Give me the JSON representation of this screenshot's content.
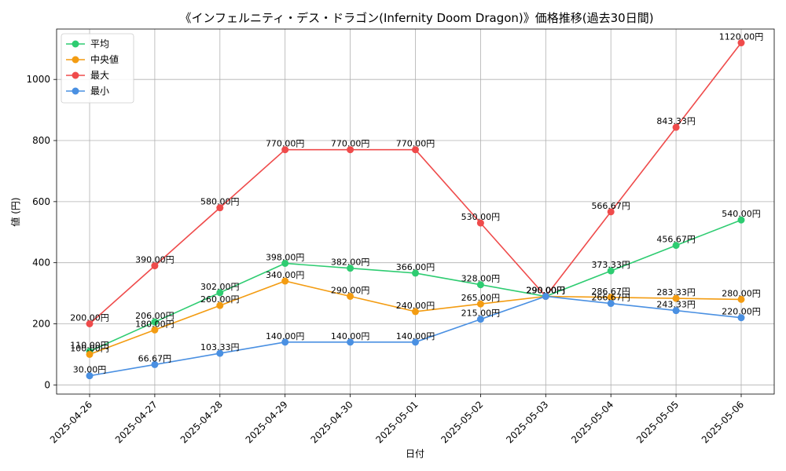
{
  "chart_data": {
    "type": "line",
    "title": "《インフェルニティ・デス・ドラゴン(Infernity Doom Dragon)》価格推移(過去30日間)",
    "xlabel": "日付",
    "ylabel": "値 (円)",
    "ylim": [
      -30,
      1165
    ],
    "yticks": [
      0,
      200,
      400,
      600,
      800,
      1000
    ],
    "grid": true,
    "legend": "top-left",
    "label_suffix": "円",
    "categories": [
      "2025-04-26",
      "2025-04-27",
      "2025-04-28",
      "2025-04-29",
      "2025-04-30",
      "2025-05-01",
      "2025-05-02",
      "2025-05-03",
      "2025-05-04",
      "2025-05-05",
      "2025-05-06"
    ],
    "series": [
      {
        "name": "平均",
        "color": "#2ecc71",
        "values": [
          110.0,
          206.0,
          302.0,
          398.0,
          382.0,
          366.0,
          328.0,
          290.0,
          373.33,
          456.67,
          540.0
        ]
      },
      {
        "name": "中央値",
        "color": "#f39c12",
        "values": [
          100.0,
          180.0,
          260.0,
          340.0,
          290.0,
          240.0,
          265.0,
          290.0,
          286.67,
          283.33,
          280.0
        ]
      },
      {
        "name": "最大",
        "color": "#ef4b4b",
        "values": [
          200.0,
          390.0,
          580.0,
          770.0,
          770.0,
          770.0,
          530.0,
          290.0,
          566.67,
          843.33,
          1120.0
        ]
      },
      {
        "name": "最小",
        "color": "#4a90e2",
        "values": [
          30.0,
          66.67,
          103.33,
          140.0,
          140.0,
          140.0,
          215.0,
          290.0,
          266.67,
          243.33,
          220.0
        ]
      }
    ]
  }
}
